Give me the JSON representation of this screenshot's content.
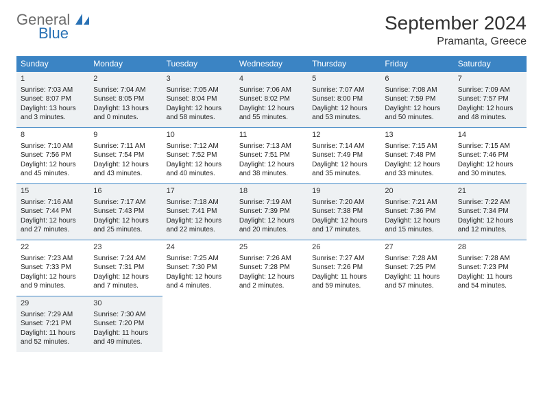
{
  "logo": {
    "line1": "General",
    "line2": "Blue"
  },
  "title": "September 2024",
  "location": "Pramanta, Greece",
  "day_headers": [
    "Sunday",
    "Monday",
    "Tuesday",
    "Wednesday",
    "Thursday",
    "Friday",
    "Saturday"
  ],
  "colors": {
    "header_bg": "#3b84c4",
    "header_text": "#ffffff",
    "shaded_bg": "#eef1f3",
    "border": "#3b84c4",
    "text": "#222222",
    "logo_gray": "#6b6b6b",
    "logo_blue": "#2a72b5"
  },
  "typography": {
    "title_fontsize": 28,
    "location_fontsize": 16,
    "header_fontsize": 12,
    "daynum_fontsize": 11,
    "body_fontsize": 10
  },
  "layout": {
    "columns": 7,
    "rows": 5,
    "shaded_rows": [
      0,
      2,
      4
    ]
  },
  "days": [
    {
      "n": "1",
      "sunrise": "Sunrise: 7:03 AM",
      "sunset": "Sunset: 8:07 PM",
      "daylight1": "Daylight: 13 hours",
      "daylight2": "and 3 minutes."
    },
    {
      "n": "2",
      "sunrise": "Sunrise: 7:04 AM",
      "sunset": "Sunset: 8:05 PM",
      "daylight1": "Daylight: 13 hours",
      "daylight2": "and 0 minutes."
    },
    {
      "n": "3",
      "sunrise": "Sunrise: 7:05 AM",
      "sunset": "Sunset: 8:04 PM",
      "daylight1": "Daylight: 12 hours",
      "daylight2": "and 58 minutes."
    },
    {
      "n": "4",
      "sunrise": "Sunrise: 7:06 AM",
      "sunset": "Sunset: 8:02 PM",
      "daylight1": "Daylight: 12 hours",
      "daylight2": "and 55 minutes."
    },
    {
      "n": "5",
      "sunrise": "Sunrise: 7:07 AM",
      "sunset": "Sunset: 8:00 PM",
      "daylight1": "Daylight: 12 hours",
      "daylight2": "and 53 minutes."
    },
    {
      "n": "6",
      "sunrise": "Sunrise: 7:08 AM",
      "sunset": "Sunset: 7:59 PM",
      "daylight1": "Daylight: 12 hours",
      "daylight2": "and 50 minutes."
    },
    {
      "n": "7",
      "sunrise": "Sunrise: 7:09 AM",
      "sunset": "Sunset: 7:57 PM",
      "daylight1": "Daylight: 12 hours",
      "daylight2": "and 48 minutes."
    },
    {
      "n": "8",
      "sunrise": "Sunrise: 7:10 AM",
      "sunset": "Sunset: 7:56 PM",
      "daylight1": "Daylight: 12 hours",
      "daylight2": "and 45 minutes."
    },
    {
      "n": "9",
      "sunrise": "Sunrise: 7:11 AM",
      "sunset": "Sunset: 7:54 PM",
      "daylight1": "Daylight: 12 hours",
      "daylight2": "and 43 minutes."
    },
    {
      "n": "10",
      "sunrise": "Sunrise: 7:12 AM",
      "sunset": "Sunset: 7:52 PM",
      "daylight1": "Daylight: 12 hours",
      "daylight2": "and 40 minutes."
    },
    {
      "n": "11",
      "sunrise": "Sunrise: 7:13 AM",
      "sunset": "Sunset: 7:51 PM",
      "daylight1": "Daylight: 12 hours",
      "daylight2": "and 38 minutes."
    },
    {
      "n": "12",
      "sunrise": "Sunrise: 7:14 AM",
      "sunset": "Sunset: 7:49 PM",
      "daylight1": "Daylight: 12 hours",
      "daylight2": "and 35 minutes."
    },
    {
      "n": "13",
      "sunrise": "Sunrise: 7:15 AM",
      "sunset": "Sunset: 7:48 PM",
      "daylight1": "Daylight: 12 hours",
      "daylight2": "and 33 minutes."
    },
    {
      "n": "14",
      "sunrise": "Sunrise: 7:15 AM",
      "sunset": "Sunset: 7:46 PM",
      "daylight1": "Daylight: 12 hours",
      "daylight2": "and 30 minutes."
    },
    {
      "n": "15",
      "sunrise": "Sunrise: 7:16 AM",
      "sunset": "Sunset: 7:44 PM",
      "daylight1": "Daylight: 12 hours",
      "daylight2": "and 27 minutes."
    },
    {
      "n": "16",
      "sunrise": "Sunrise: 7:17 AM",
      "sunset": "Sunset: 7:43 PM",
      "daylight1": "Daylight: 12 hours",
      "daylight2": "and 25 minutes."
    },
    {
      "n": "17",
      "sunrise": "Sunrise: 7:18 AM",
      "sunset": "Sunset: 7:41 PM",
      "daylight1": "Daylight: 12 hours",
      "daylight2": "and 22 minutes."
    },
    {
      "n": "18",
      "sunrise": "Sunrise: 7:19 AM",
      "sunset": "Sunset: 7:39 PM",
      "daylight1": "Daylight: 12 hours",
      "daylight2": "and 20 minutes."
    },
    {
      "n": "19",
      "sunrise": "Sunrise: 7:20 AM",
      "sunset": "Sunset: 7:38 PM",
      "daylight1": "Daylight: 12 hours",
      "daylight2": "and 17 minutes."
    },
    {
      "n": "20",
      "sunrise": "Sunrise: 7:21 AM",
      "sunset": "Sunset: 7:36 PM",
      "daylight1": "Daylight: 12 hours",
      "daylight2": "and 15 minutes."
    },
    {
      "n": "21",
      "sunrise": "Sunrise: 7:22 AM",
      "sunset": "Sunset: 7:34 PM",
      "daylight1": "Daylight: 12 hours",
      "daylight2": "and 12 minutes."
    },
    {
      "n": "22",
      "sunrise": "Sunrise: 7:23 AM",
      "sunset": "Sunset: 7:33 PM",
      "daylight1": "Daylight: 12 hours",
      "daylight2": "and 9 minutes."
    },
    {
      "n": "23",
      "sunrise": "Sunrise: 7:24 AM",
      "sunset": "Sunset: 7:31 PM",
      "daylight1": "Daylight: 12 hours",
      "daylight2": "and 7 minutes."
    },
    {
      "n": "24",
      "sunrise": "Sunrise: 7:25 AM",
      "sunset": "Sunset: 7:30 PM",
      "daylight1": "Daylight: 12 hours",
      "daylight2": "and 4 minutes."
    },
    {
      "n": "25",
      "sunrise": "Sunrise: 7:26 AM",
      "sunset": "Sunset: 7:28 PM",
      "daylight1": "Daylight: 12 hours",
      "daylight2": "and 2 minutes."
    },
    {
      "n": "26",
      "sunrise": "Sunrise: 7:27 AM",
      "sunset": "Sunset: 7:26 PM",
      "daylight1": "Daylight: 11 hours",
      "daylight2": "and 59 minutes."
    },
    {
      "n": "27",
      "sunrise": "Sunrise: 7:28 AM",
      "sunset": "Sunset: 7:25 PM",
      "daylight1": "Daylight: 11 hours",
      "daylight2": "and 57 minutes."
    },
    {
      "n": "28",
      "sunrise": "Sunrise: 7:28 AM",
      "sunset": "Sunset: 7:23 PM",
      "daylight1": "Daylight: 11 hours",
      "daylight2": "and 54 minutes."
    },
    {
      "n": "29",
      "sunrise": "Sunrise: 7:29 AM",
      "sunset": "Sunset: 7:21 PM",
      "daylight1": "Daylight: 11 hours",
      "daylight2": "and 52 minutes."
    },
    {
      "n": "30",
      "sunrise": "Sunrise: 7:30 AM",
      "sunset": "Sunset: 7:20 PM",
      "daylight1": "Daylight: 11 hours",
      "daylight2": "and 49 minutes."
    }
  ]
}
